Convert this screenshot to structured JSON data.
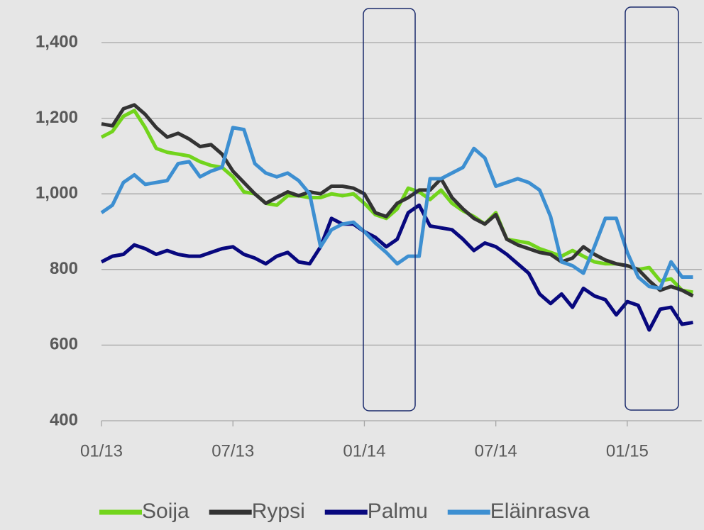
{
  "chart_data": {
    "type": "line",
    "x": [
      0,
      0.5,
      1,
      1.5,
      2,
      2.5,
      3,
      3.5,
      4,
      4.5,
      5,
      5.5,
      6,
      6.5,
      7,
      7.5,
      8,
      8.5,
      9,
      9.5,
      10,
      10.5,
      11,
      11.5,
      12,
      12.5,
      13,
      13.5,
      14,
      14.5,
      15,
      15.5,
      16,
      16.5,
      17,
      17.5,
      18,
      18.5,
      19,
      19.5,
      20,
      20.5,
      21,
      21.5,
      22,
      22.5,
      23,
      23.5,
      24,
      24.5,
      25,
      25.5,
      26,
      26.5,
      27
    ],
    "series": [
      {
        "name": "Soija",
        "color": "#72d41c",
        "values": [
          1150,
          1165,
          1205,
          1220,
          1175,
          1120,
          1110,
          1105,
          1100,
          1085,
          1075,
          1070,
          1045,
          1005,
          1000,
          975,
          970,
          995,
          995,
          990,
          990,
          1000,
          995,
          1000,
          975,
          945,
          935,
          960,
          1015,
          1005,
          985,
          1010,
          975,
          955,
          940,
          920,
          950,
          880,
          875,
          870,
          855,
          845,
          835,
          850,
          835,
          820,
          815,
          815,
          810,
          800,
          805,
          770,
          775,
          745,
          740
        ]
      },
      {
        "name": "Rypsi",
        "color": "#333333",
        "values": [
          1185,
          1180,
          1225,
          1235,
          1210,
          1175,
          1150,
          1160,
          1145,
          1125,
          1130,
          1105,
          1060,
          1030,
          1000,
          975,
          990,
          1005,
          995,
          1005,
          1000,
          1020,
          1020,
          1015,
          1000,
          950,
          940,
          975,
          990,
          1010,
          1010,
          1040,
          990,
          960,
          935,
          920,
          945,
          880,
          865,
          855,
          845,
          840,
          820,
          830,
          860,
          840,
          825,
          815,
          810,
          800,
          770,
          745,
          755,
          745,
          730
        ]
      },
      {
        "name": "Palmu",
        "color": "#08087e",
        "values": [
          820,
          835,
          840,
          865,
          855,
          840,
          850,
          840,
          835,
          835,
          845,
          855,
          860,
          840,
          830,
          815,
          835,
          845,
          820,
          815,
          860,
          935,
          920,
          920,
          900,
          885,
          860,
          880,
          950,
          970,
          915,
          910,
          905,
          880,
          850,
          870,
          860,
          840,
          815,
          790,
          735,
          710,
          735,
          700,
          750,
          730,
          720,
          680,
          715,
          705,
          640,
          695,
          700,
          655,
          660
        ]
      },
      {
        "name": "Eläinrasva",
        "color": "#3d8fd1",
        "values": [
          950,
          970,
          1030,
          1050,
          1025,
          1030,
          1035,
          1080,
          1085,
          1045,
          1060,
          1070,
          1175,
          1170,
          1080,
          1055,
          1045,
          1055,
          1035,
          1000,
          860,
          905,
          920,
          925,
          900,
          870,
          845,
          815,
          835,
          835,
          1040,
          1040,
          1055,
          1070,
          1120,
          1095,
          1020,
          1030,
          1040,
          1030,
          1010,
          940,
          820,
          810,
          790,
          860,
          935,
          935,
          845,
          780,
          755,
          750,
          820,
          780,
          780
        ]
      }
    ],
    "xlim": [
      0,
      27.4
    ],
    "xticks": [
      {
        "value": 0,
        "label": "01/13"
      },
      {
        "value": 6,
        "label": "07/13"
      },
      {
        "value": 12,
        "label": "01/14"
      },
      {
        "value": 18,
        "label": "07/14"
      },
      {
        "value": 24,
        "label": "01/15"
      }
    ],
    "ylim": [
      400,
      1500
    ],
    "yticks": [
      400,
      600,
      800,
      {
        "value": 1000,
        "label": "1,000"
      },
      {
        "value": 1200,
        "label": "1,200"
      },
      {
        "value": 1400,
        "label": "1,400"
      }
    ],
    "grid": true,
    "legend": "bottom"
  }
}
